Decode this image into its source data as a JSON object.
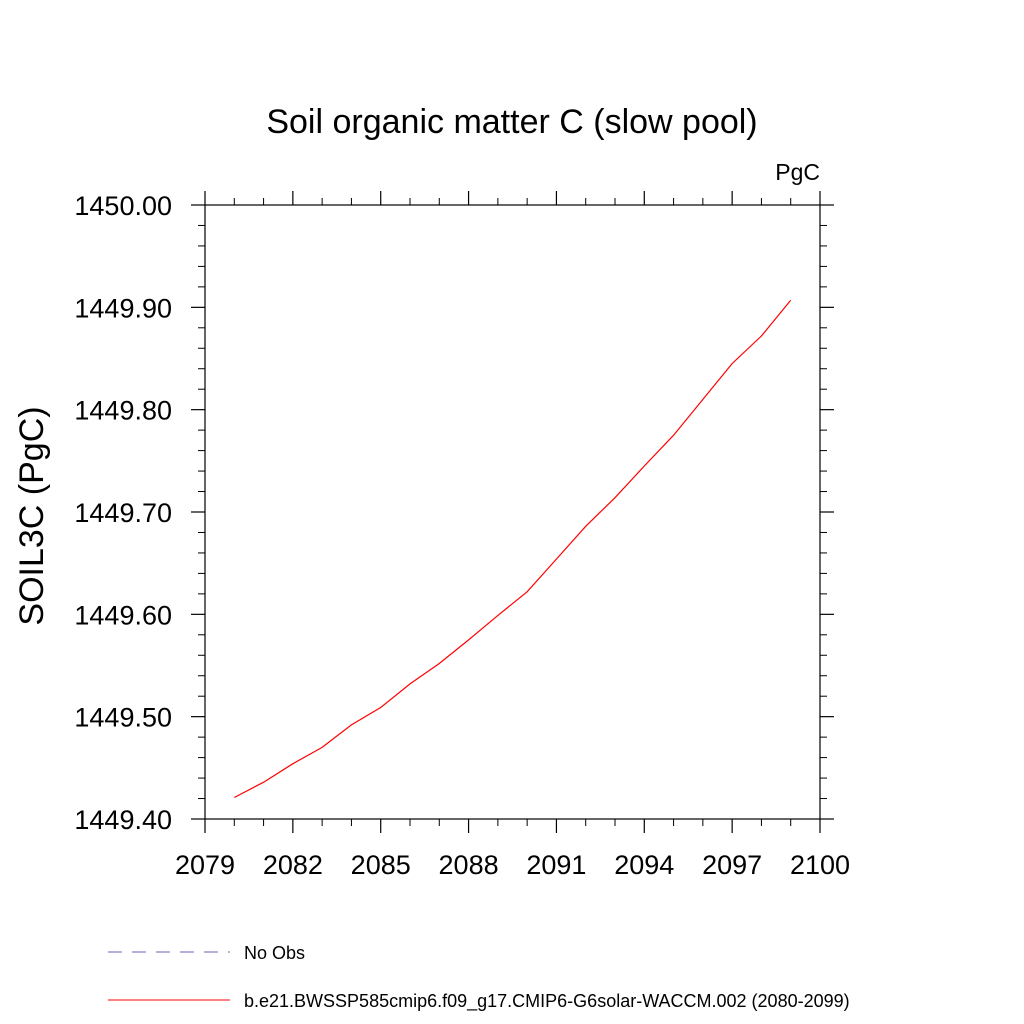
{
  "chart_data": {
    "type": "line",
    "title": "Soil organic matter C (slow pool)",
    "units": "PgC",
    "xlabel": "",
    "ylabel": "SOIL3C  (PgC)",
    "xlim": [
      2079,
      2100
    ],
    "ylim": [
      1449.4,
      1450.0
    ],
    "x_ticks": [
      2079,
      2082,
      2085,
      2088,
      2091,
      2094,
      2097,
      2100
    ],
    "x_tick_labels": [
      "2079",
      "2082",
      "2085",
      "2088",
      "2091",
      "2094",
      "2097",
      "2100"
    ],
    "y_ticks": [
      1449.4,
      1449.5,
      1449.6,
      1449.7,
      1449.8,
      1449.9,
      1450.0
    ],
    "y_tick_labels": [
      "1449.40",
      "1449.50",
      "1449.60",
      "1449.70",
      "1449.80",
      "1449.90",
      "1450.00"
    ],
    "grid": false,
    "legend_position": "bottom",
    "series": [
      {
        "name": "No Obs",
        "color": "#6b5fb5",
        "dash": "dashed",
        "x": [],
        "values": []
      },
      {
        "name": "b.e21.BWSSP585cmip6.f09_g17.CMIP6-G6solar-WACCM.002 (2080-2099)",
        "color": "#ff0000",
        "dash": "solid",
        "x": [
          2080,
          2081,
          2082,
          2083,
          2084,
          2085,
          2086,
          2087,
          2088,
          2089,
          2090,
          2091,
          2092,
          2093,
          2094,
          2095,
          2096,
          2097,
          2098,
          2099
        ],
        "values": [
          1449.421,
          1449.436,
          1449.454,
          1449.47,
          1449.492,
          1449.509,
          1449.532,
          1449.552,
          1449.575,
          1449.599,
          1449.622,
          1449.654,
          1449.686,
          1449.714,
          1449.745,
          1449.775,
          1449.81,
          1449.845,
          1449.872,
          1449.907
        ]
      }
    ]
  }
}
